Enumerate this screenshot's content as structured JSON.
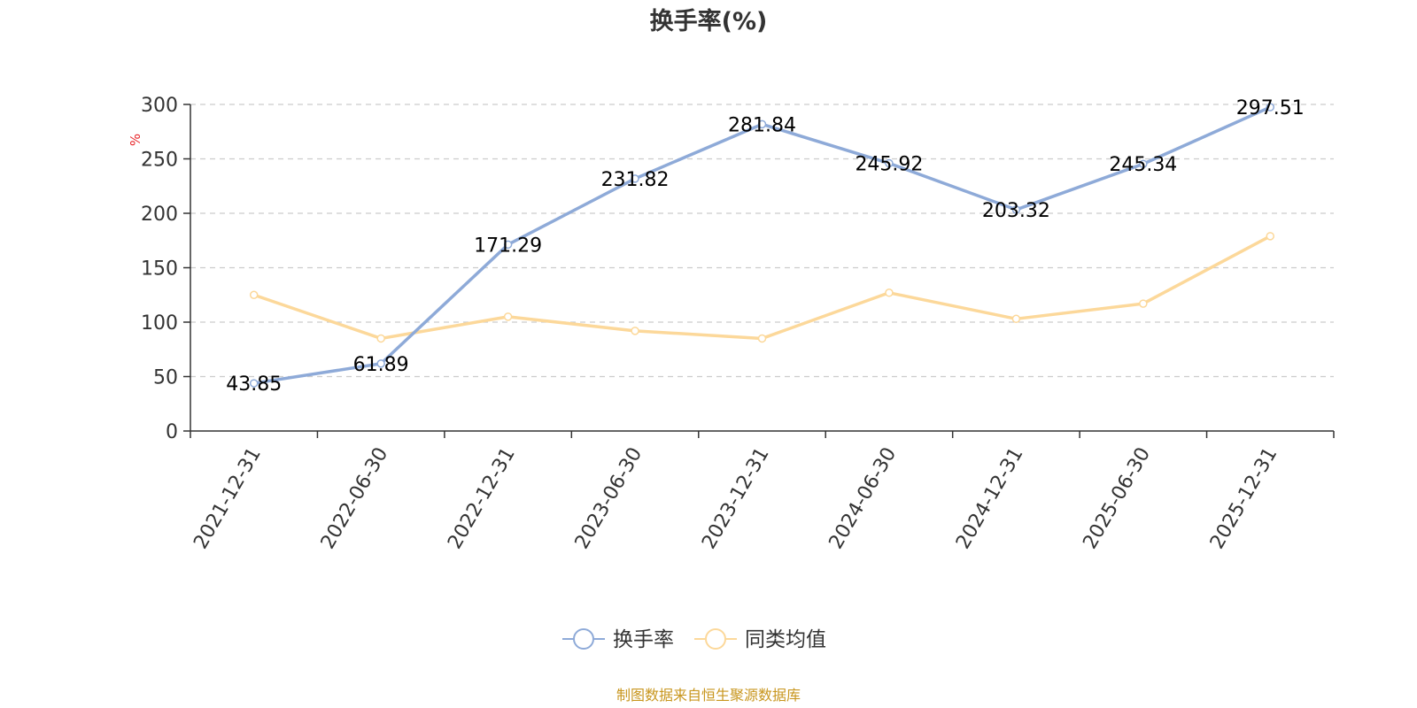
{
  "title": "换手率(%)",
  "source": "制图数据来自恒生聚源数据库",
  "colors": {
    "series_1": "#8eaad8",
    "series_2": "#fcd89a",
    "unit": "#e8262a",
    "source": "#c8961e",
    "grid": "#cccccc",
    "axis": "#333333"
  },
  "chart_data": {
    "type": "line",
    "title": "换手率(%)",
    "ylabel": "%",
    "xlabel": "",
    "ylim": [
      0,
      300
    ],
    "yticks": [
      0,
      50,
      100,
      150,
      200,
      250,
      300
    ],
    "grid": true,
    "legend_position": "bottom-center",
    "categories": [
      "2021-12-31",
      "2022-06-30",
      "2022-12-31",
      "2023-06-30",
      "2023-12-31",
      "2024-06-30",
      "2024-12-31",
      "2025-06-30",
      "2025-12-31"
    ],
    "series": [
      {
        "name": "换手率",
        "values": [
          43.85,
          61.89,
          171.29,
          231.82,
          281.84,
          245.92,
          203.32,
          245.34,
          297.51
        ],
        "labels": [
          "43.85",
          "61.89",
          "171.29",
          "231.82",
          "281.84",
          "245.92",
          "203.32",
          "245.34",
          "297.51"
        ]
      },
      {
        "name": "同类均值",
        "values": [
          125,
          85,
          105,
          92,
          85,
          127,
          103,
          117,
          179
        ]
      }
    ]
  }
}
